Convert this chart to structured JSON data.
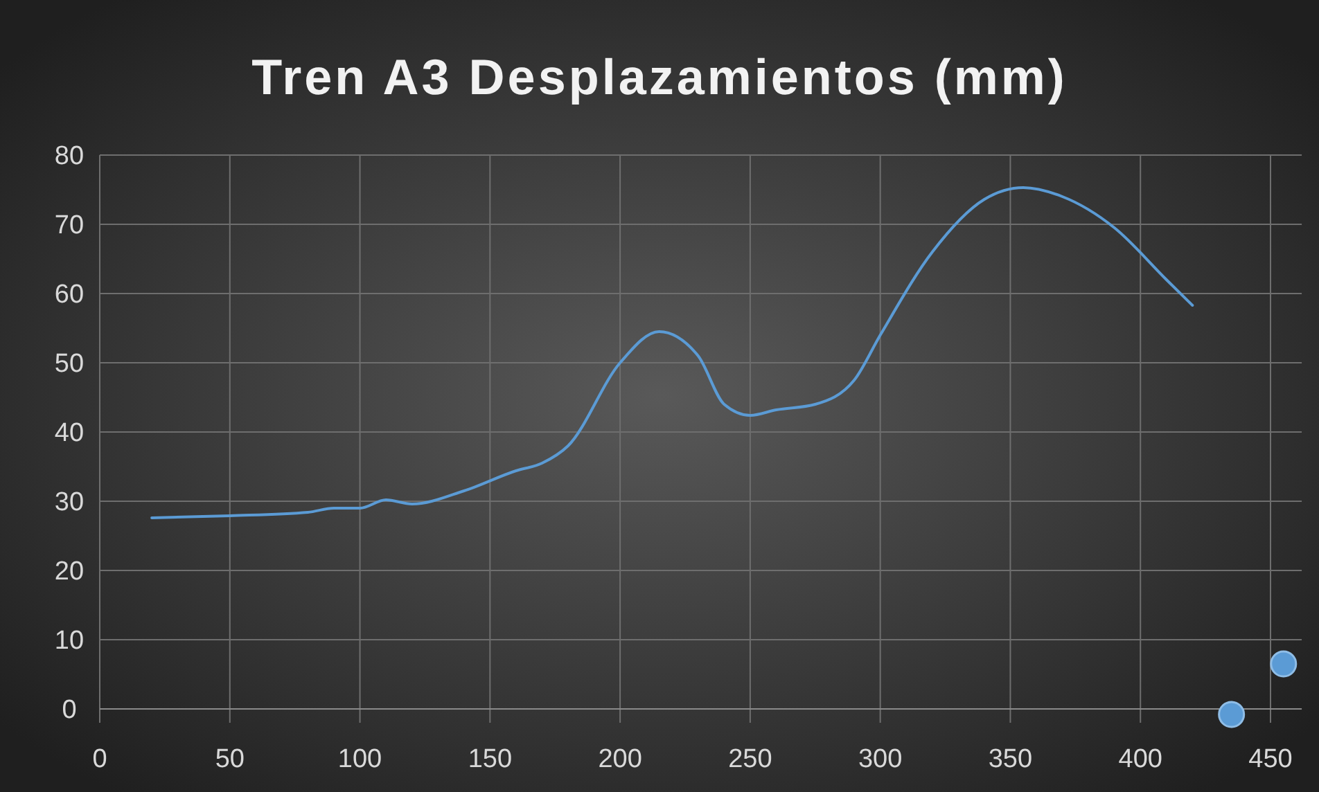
{
  "chart_data": {
    "type": "line",
    "title": "Tren A3 Desplazamientos (mm)",
    "xlim": [
      0,
      462
    ],
    "xticks": [
      0,
      50,
      100,
      150,
      200,
      250,
      300,
      350,
      400,
      450
    ],
    "ylim": [
      -2,
      80
    ],
    "yticks": [
      0,
      10,
      20,
      30,
      40,
      50,
      60,
      70,
      80
    ],
    "grid": true,
    "line_style": "solid",
    "series": [
      {
        "type": "line",
        "color": "#5b9bd5",
        "marker": "none",
        "x": [
          20,
          50,
          80,
          90,
          100,
          110,
          120,
          140,
          160,
          170,
          180,
          200,
          215,
          230,
          240,
          250,
          260,
          275,
          290,
          300,
          320,
          340,
          355,
          370,
          390,
          410,
          420
        ],
        "values": [
          27.6,
          27.9,
          28.4,
          29,
          29,
          30.2,
          29.6,
          31.5,
          34.4,
          35.5,
          38,
          50,
          54.5,
          51,
          44,
          42.4,
          43.2,
          44,
          47.5,
          54,
          66,
          73.6,
          75.3,
          74,
          69.5,
          62,
          58.3
        ]
      },
      {
        "type": "scatter",
        "color": "#5b9bd5",
        "marker": "circle",
        "x": [
          435,
          455
        ],
        "values": [
          -0.8,
          6.5
        ]
      }
    ]
  }
}
